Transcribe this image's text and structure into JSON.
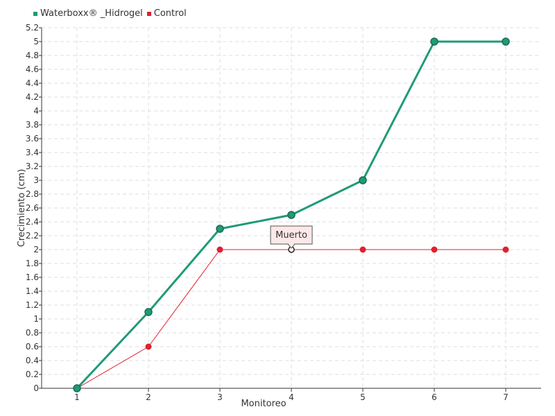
{
  "chart_data": {
    "type": "line",
    "title": "",
    "xlabel": "Monitoreo",
    "ylabel": "Crecimiento (cm)",
    "categories": [
      "1",
      "2",
      "3",
      "4",
      "5",
      "6",
      "7"
    ],
    "ylim": [
      0,
      5.2
    ],
    "yticks": [
      "0",
      "0.2",
      "0.4",
      "0.6",
      "0.8",
      "1",
      "1.2",
      "1.4",
      "1.6",
      "1.8",
      "2",
      "2.2",
      "2.4",
      "2.6",
      "2.8",
      "3",
      "3.2",
      "3.4",
      "3.6",
      "3.8",
      "4",
      "4.2",
      "4.4",
      "4.6",
      "4.8",
      "5",
      "5.2"
    ],
    "ytick_values": [
      0,
      0.2,
      0.4,
      0.6,
      0.8,
      1,
      1.2,
      1.4,
      1.6,
      1.8,
      2,
      2.2,
      2.4,
      2.6,
      2.8,
      3,
      3.2,
      3.4,
      3.6,
      3.8,
      4,
      4.2,
      4.4,
      4.6,
      4.8,
      5,
      5.2
    ],
    "grid": true,
    "legend_position": "top-left",
    "series": [
      {
        "name": "Waterboxx® _Hidrogel",
        "color": "#1f9a78",
        "values": [
          0,
          1.1,
          2.3,
          2.5,
          3,
          5,
          5
        ]
      },
      {
        "name": "Control",
        "color": "#e0202e",
        "values": [
          0,
          0.6,
          2,
          2,
          2,
          2,
          2
        ]
      }
    ],
    "annotations": [
      {
        "text": "Muerto",
        "series": "Control",
        "category": "4",
        "value": 2
      }
    ]
  }
}
